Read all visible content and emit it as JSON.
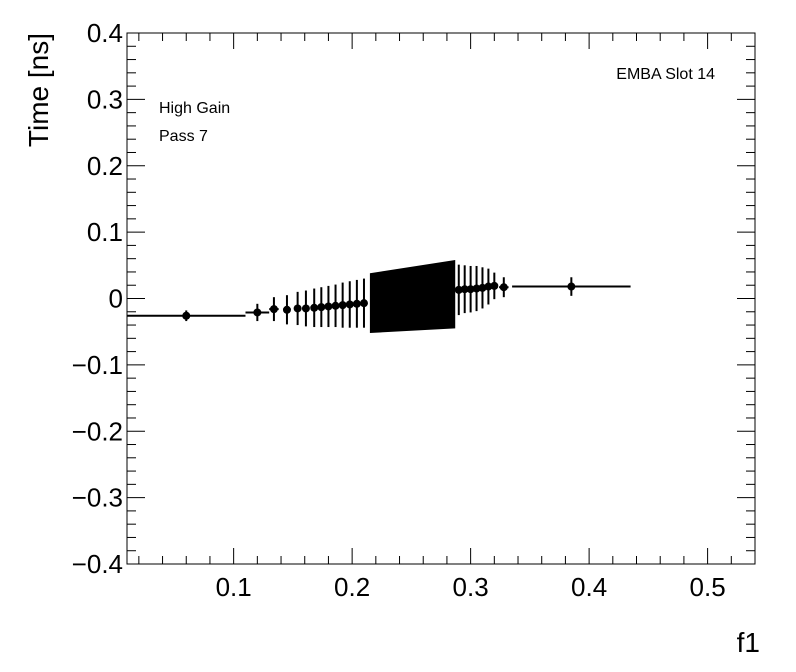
{
  "chart_data": {
    "type": "scatter",
    "xlabel": "f1",
    "ylabel": "Time [ns]",
    "xlim": [
      0.01,
      0.54
    ],
    "ylim": [
      -0.4,
      0.4
    ],
    "x_ticks": [
      0.1,
      0.2,
      0.3,
      0.4,
      0.5
    ],
    "x_tick_labels": [
      "0.1",
      "0.2",
      "0.3",
      "0.4",
      "0.5"
    ],
    "y_ticks": [
      -0.4,
      -0.3,
      -0.2,
      -0.1,
      0,
      0.1,
      0.2,
      0.3,
      0.4
    ],
    "y_tick_labels": [
      "−0.4",
      "−0.3",
      "−0.2",
      "−0.1",
      "0",
      "0.1",
      "0.2",
      "0.3",
      "0.4"
    ],
    "grid": false,
    "annotations": {
      "label_top_right": "EMBA Slot 14",
      "line1": "High Gain",
      "line2": "Pass 7"
    },
    "dense_band": {
      "x_start": 0.215,
      "x_end": 0.287,
      "y_low_start": -0.052,
      "y_high_start": 0.038,
      "y_low_end": -0.045,
      "y_high_end": 0.058
    },
    "points": [
      {
        "x": 0.06,
        "xerr": 0.05,
        "y": -0.026,
        "yerr": 0.008
      },
      {
        "x": 0.12,
        "xerr": 0.01,
        "y": -0.021,
        "yerr": 0.013
      },
      {
        "x": 0.134,
        "xerr": 0.004,
        "y": -0.016,
        "yerr": 0.018
      },
      {
        "x": 0.145,
        "xerr": 0.003,
        "y": -0.017,
        "yerr": 0.022
      },
      {
        "x": 0.154,
        "xerr": 0.003,
        "y": -0.015,
        "yerr": 0.025
      },
      {
        "x": 0.161,
        "xerr": 0.002,
        "y": -0.015,
        "yerr": 0.027
      },
      {
        "x": 0.168,
        "xerr": 0.002,
        "y": -0.014,
        "yerr": 0.029
      },
      {
        "x": 0.174,
        "xerr": 0.002,
        "y": -0.013,
        "yerr": 0.03
      },
      {
        "x": 0.18,
        "xerr": 0.002,
        "y": -0.012,
        "yerr": 0.031
      },
      {
        "x": 0.186,
        "xerr": 0.002,
        "y": -0.011,
        "yerr": 0.032
      },
      {
        "x": 0.192,
        "xerr": 0.002,
        "y": -0.01,
        "yerr": 0.034
      },
      {
        "x": 0.198,
        "xerr": 0.002,
        "y": -0.009,
        "yerr": 0.035
      },
      {
        "x": 0.204,
        "xerr": 0.002,
        "y": -0.008,
        "yerr": 0.036
      },
      {
        "x": 0.21,
        "xerr": 0.002,
        "y": -0.007,
        "yerr": 0.037
      },
      {
        "x": 0.29,
        "xerr": 0.002,
        "y": 0.013,
        "yerr": 0.038
      },
      {
        "x": 0.295,
        "xerr": 0.002,
        "y": 0.014,
        "yerr": 0.036
      },
      {
        "x": 0.3,
        "xerr": 0.002,
        "y": 0.014,
        "yerr": 0.035
      },
      {
        "x": 0.305,
        "xerr": 0.002,
        "y": 0.015,
        "yerr": 0.034
      },
      {
        "x": 0.31,
        "xerr": 0.002,
        "y": 0.016,
        "yerr": 0.031
      },
      {
        "x": 0.315,
        "xerr": 0.002,
        "y": 0.018,
        "yerr": 0.027
      },
      {
        "x": 0.32,
        "xerr": 0.003,
        "y": 0.019,
        "yerr": 0.02
      },
      {
        "x": 0.328,
        "xerr": 0.004,
        "y": 0.017,
        "yerr": 0.015
      },
      {
        "x": 0.385,
        "xerr": 0.05,
        "y": 0.018,
        "yerr": 0.014
      }
    ]
  }
}
